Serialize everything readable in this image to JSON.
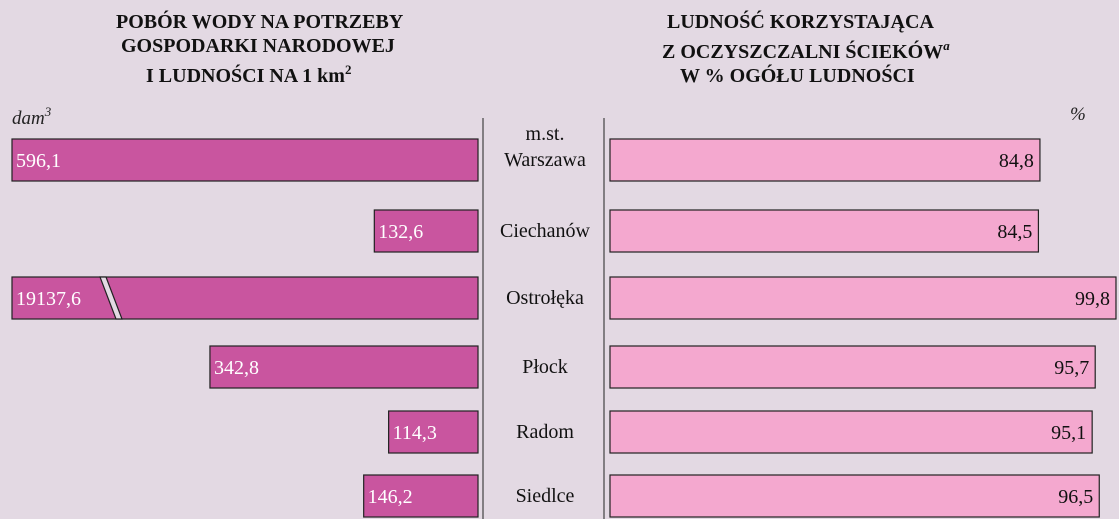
{
  "chart_data": [
    {
      "type": "bar",
      "title_lines": [
        "POBÓR WODY NA POTRZEBY",
        "GOSPODARKI NARODOWEJ",
        "I LUDNOŚCI NA 1 km"
      ],
      "title_superscript": "2",
      "unit": "dam",
      "unit_superscript": "3",
      "categories": [
        "m.st. Warszawa",
        "Ciechanów",
        "Ostrołęka",
        "Płock",
        "Radom",
        "Siedlce"
      ],
      "values": [
        596.1,
        132.6,
        19137.6,
        342.8,
        114.3,
        146.2
      ],
      "value_labels": [
        "596,1",
        "132,6",
        "19137,6",
        "342,8",
        "114,3",
        "146,2"
      ],
      "xlim": [
        0,
        610
      ],
      "color": "#c9559f"
    },
    {
      "type": "bar",
      "title_lines": [
        "LUDNOŚĆ KORZYSTAJĄCA",
        "Z OCZYSZCZALNI ŚCIEKÓW",
        "W % OGÓŁU LUDNOŚCI"
      ],
      "title_superscript": "a",
      "unit": "%",
      "values": [
        84.8,
        84.5,
        99.8,
        95.7,
        95.1,
        96.5
      ],
      "value_labels": [
        "84,8",
        "84,5",
        "99,8",
        "95,7",
        "95,1",
        "96,5"
      ],
      "xlim": [
        0,
        100
      ],
      "color": "#f4a8cf"
    }
  ]
}
